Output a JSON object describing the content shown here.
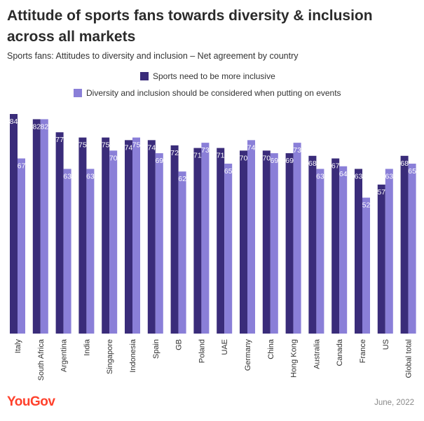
{
  "title": "Attitude of sports fans towards diversity & inclusion across all markets",
  "subtitle": "Sports fans: Attitudes to diversity and inclusion – Net agreement by country",
  "footer": {
    "logo": "YouGov",
    "date": "June, 2022"
  },
  "colors": {
    "series1": "#3a2c7a",
    "series2": "#8a7fd8",
    "label_on_bar": "#ffffff"
  },
  "chart_data": {
    "type": "bar",
    "categories": [
      "Italy",
      "South Africa",
      "Argentina",
      "India",
      "Singapore",
      "Indonesia",
      "Spain",
      "GB",
      "Poland",
      "UAE",
      "Germany",
      "China",
      "Hong Kong",
      "Australia",
      "Canada",
      "France",
      "US",
      "Global total"
    ],
    "series": [
      {
        "name": "Sports need to be more inclusive",
        "values": [
          84,
          82,
          77,
          75,
          75,
          74,
          74,
          72,
          71,
          71,
          70,
          70,
          69,
          68,
          67,
          63,
          57,
          68
        ]
      },
      {
        "name": "Diversity and inclusion should be considered when putting on events",
        "values": [
          67,
          82,
          63,
          63,
          70,
          75,
          69,
          62,
          73,
          65,
          74,
          69,
          73,
          63,
          64,
          52,
          63,
          65
        ]
      }
    ],
    "ylim": [
      0,
      84
    ],
    "grid": false,
    "legend": "top"
  }
}
